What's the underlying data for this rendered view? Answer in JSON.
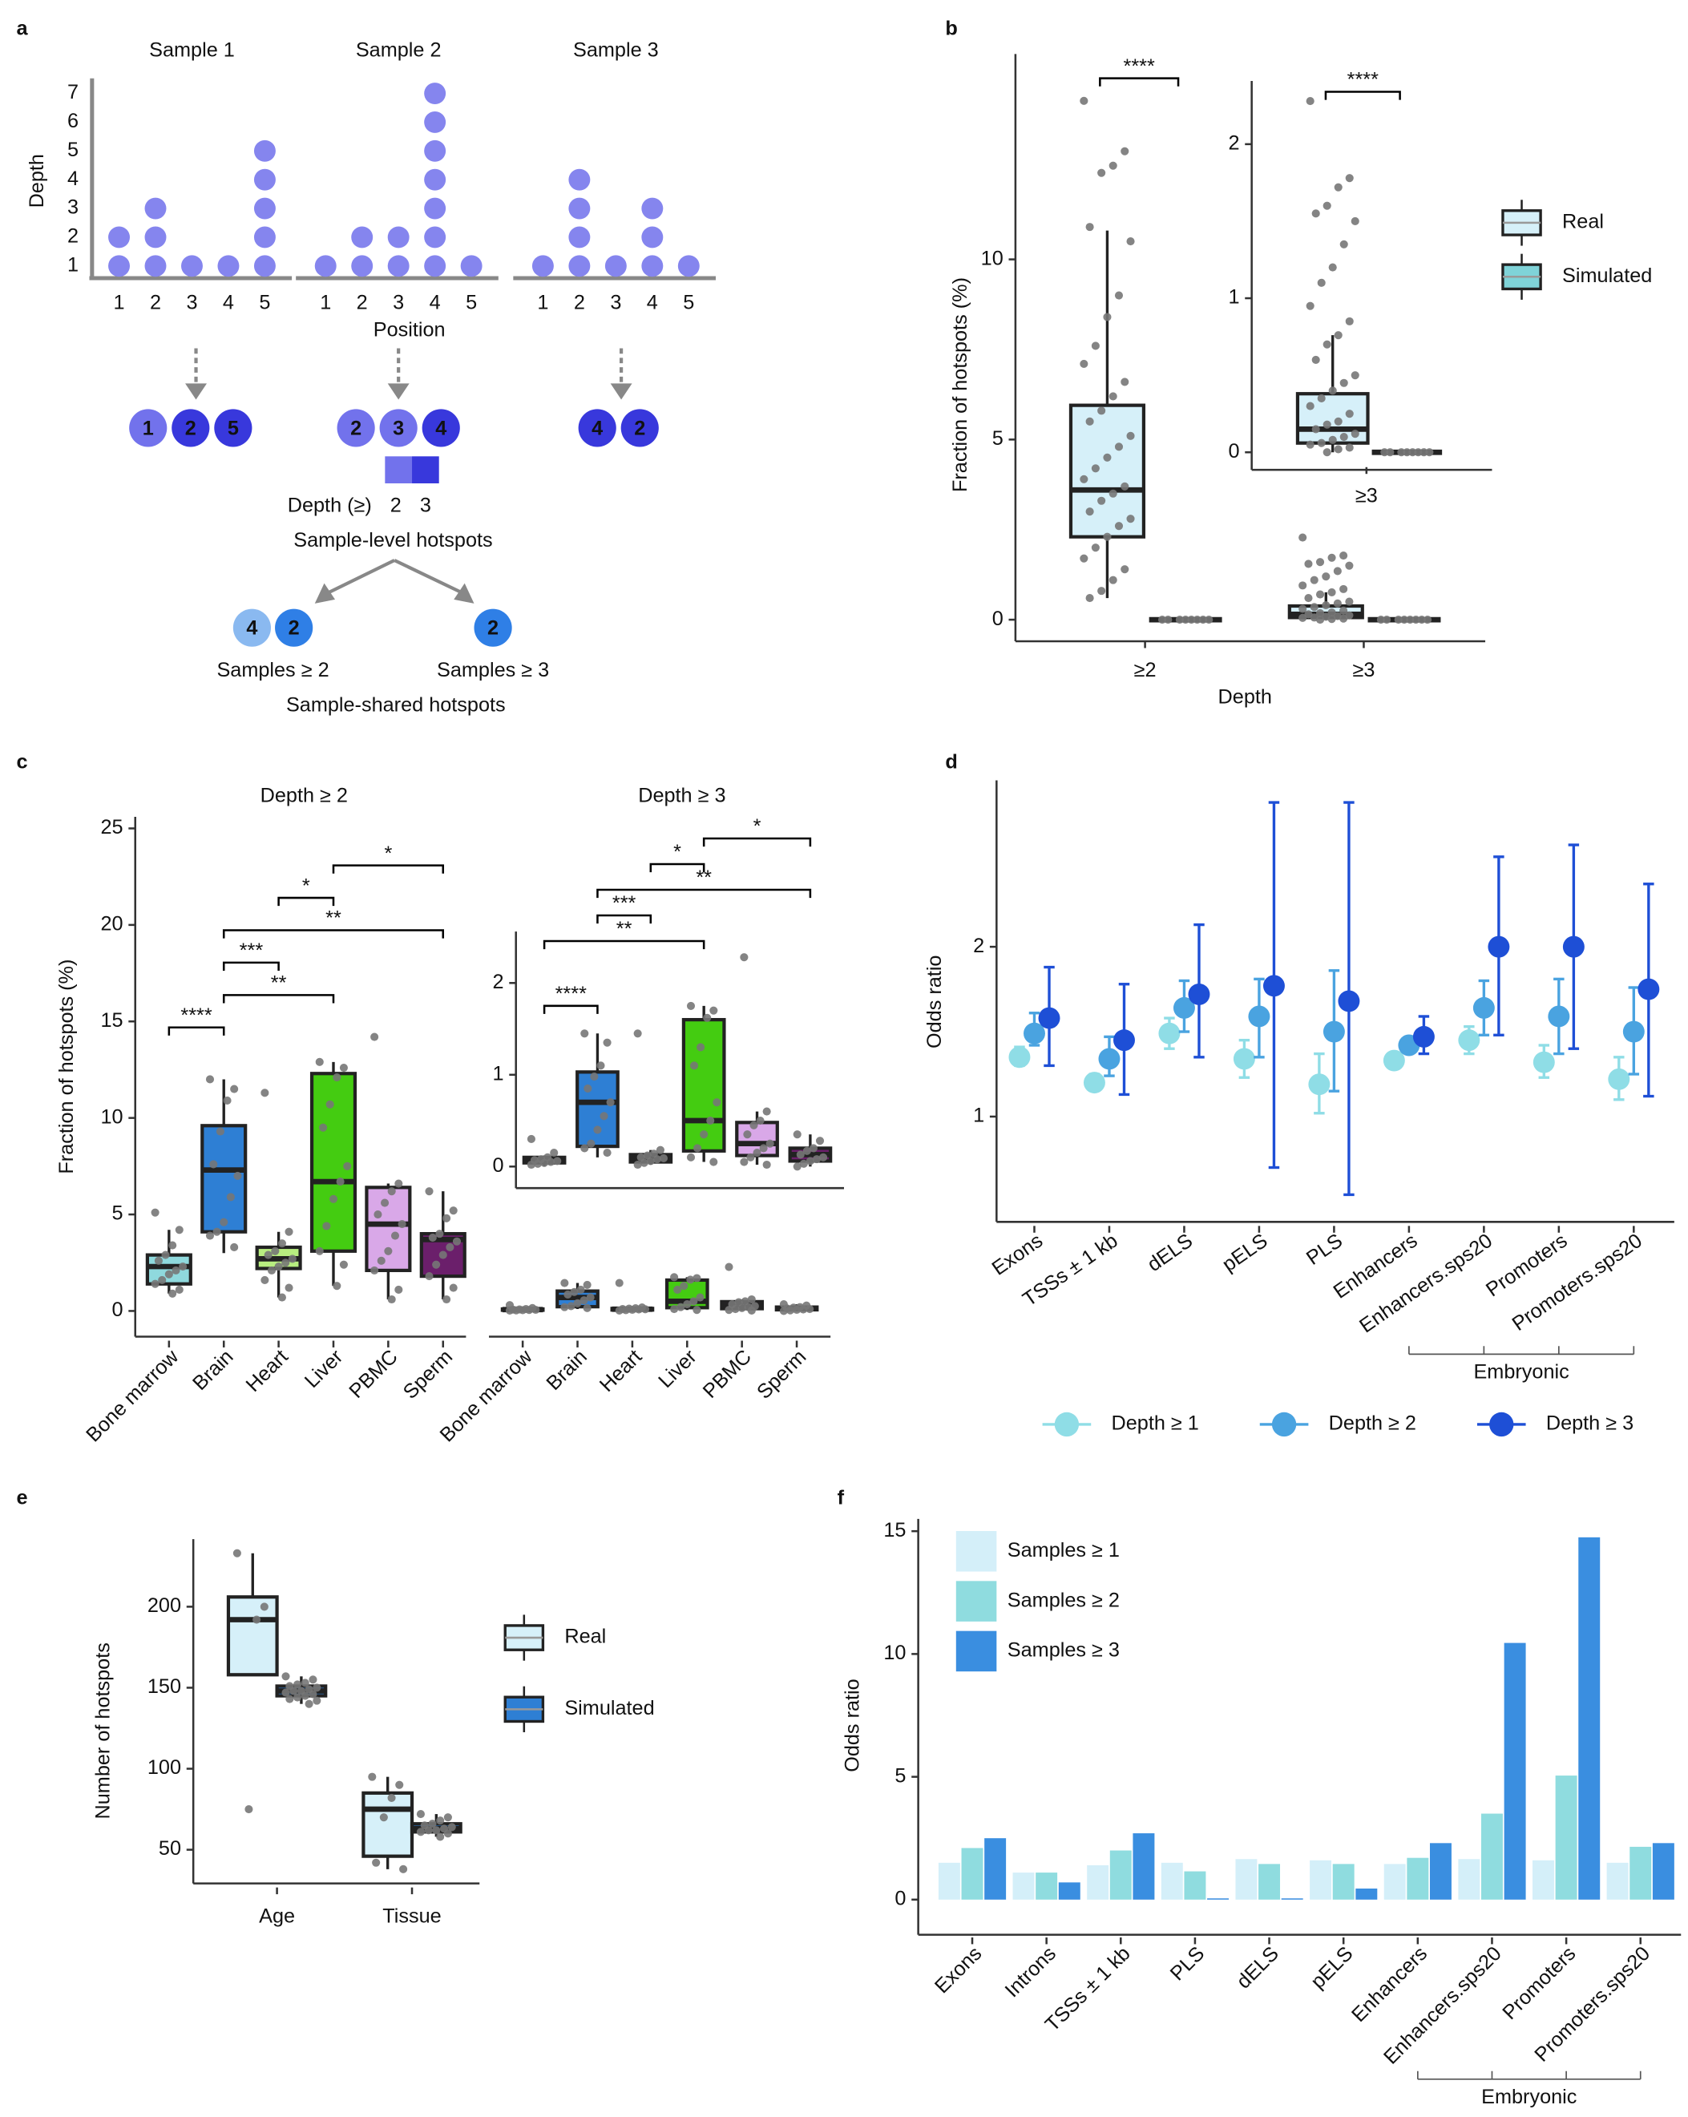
{
  "panels": [
    "a",
    "b",
    "c",
    "d",
    "e",
    "f"
  ],
  "diagram": {
    "depth_label": "Depth",
    "depth_ticks": [
      1,
      2,
      3,
      4,
      5,
      6,
      7
    ],
    "xlabel": "Position",
    "samples": [
      {
        "title": "Sample 1",
        "positions": [
          1,
          2,
          3,
          4,
          5
        ],
        "depths": [
          2,
          3,
          1,
          1,
          5
        ],
        "hotspots": [
          1,
          2,
          5
        ]
      },
      {
        "title": "Sample 2",
        "positions": [
          1,
          2,
          3,
          4,
          5
        ],
        "depths": [
          1,
          2,
          2,
          7,
          1
        ],
        "hotspots": [
          2,
          3,
          4
        ]
      },
      {
        "title": "Sample 3",
        "positions": [
          1,
          2,
          3,
          4,
          5
        ],
        "depths": [
          1,
          4,
          1,
          3,
          1
        ],
        "hotspots": [
          4,
          2
        ]
      }
    ],
    "dot_color": "#8585ee",
    "depth_key": {
      "label": "Depth (≥)",
      "levels": [
        2,
        3
      ],
      "colors": [
        "#7272ec",
        "#3838dc"
      ]
    },
    "level_title": "Sample-level hotspots",
    "shared": [
      {
        "label": "Samples ≥ 2",
        "hotspots": [
          4,
          2
        ],
        "colors": [
          "#8ab9f0",
          "#2f7fe6"
        ]
      },
      {
        "label": "Samples ≥ 3",
        "hotspots": [
          2
        ],
        "colors": [
          "#2f7fe6"
        ]
      }
    ],
    "shared_title": "Sample-shared hotspots"
  },
  "chart_data": [
    {
      "type": "box",
      "xlabel": "Depth",
      "ylabel": "Fraction of hotspots (%)",
      "categories": [
        "≥2",
        "≥3"
      ],
      "series": [
        {
          "name": "Real",
          "color": "#d6f0f9",
          "boxes": [
            {
              "min": 0.6,
              "q1": 2.3,
              "median": 3.6,
              "q3": 5.95,
              "max": 10.8,
              "points": [
                14.4,
                13.0,
                12.6,
                12.4,
                10.9,
                10.5,
                9.0,
                8.4,
                7.6,
                7.1,
                6.6,
                6.2,
                5.8,
                5.5,
                5.1,
                4.8,
                4.5,
                4.2,
                3.9,
                3.7,
                3.5,
                3.3,
                3.0,
                2.8,
                2.6,
                2.3,
                2.0,
                1.7,
                1.4,
                1.1,
                0.8,
                0.6
              ]
            },
            {
              "min": 0,
              "q1": 0.06,
              "median": 0.15,
              "q3": 0.38,
              "max": 0.76,
              "points": [
                2.28,
                1.78,
                1.72,
                1.6,
                1.55,
                1.5,
                1.35,
                1.2,
                1.1,
                0.95,
                0.85,
                0.76,
                0.7,
                0.6,
                0.5,
                0.45,
                0.4,
                0.35,
                0.3,
                0.25,
                0.2,
                0.18,
                0.15,
                0.12,
                0.1,
                0.08,
                0.06,
                0.05,
                0.03,
                0.02,
                0
              ]
            }
          ]
        },
        {
          "name": "Simulated",
          "color": "#7fd3d8",
          "boxes": [
            {
              "min": 0,
              "q1": 0,
              "median": 0,
              "q3": 0,
              "max": 0,
              "points": [
                0,
                0,
                0,
                0,
                0,
                0,
                0,
                0
              ]
            },
            {
              "min": 0,
              "q1": 0,
              "median": 0,
              "q3": 0,
              "max": 0,
              "points": [
                0,
                0,
                0,
                0,
                0,
                0,
                0,
                0
              ]
            }
          ]
        }
      ],
      "ylim": [
        -0.6,
        15.7
      ],
      "yticks": [
        0,
        5,
        10
      ],
      "brackets": [
        {
          "label": "****",
          "category": "≥2"
        }
      ],
      "inset": {
        "categories": [
          "≥3"
        ],
        "ylim": [
          -0.114,
          2.41
        ],
        "yticks": [
          0,
          1,
          2
        ],
        "brackets": [
          {
            "label": "****",
            "category": "≥3"
          }
        ]
      }
    },
    {
      "type": "box",
      "title": "Depth ≥ 2",
      "ylabel": "Fraction of hotspots (%)",
      "categories": [
        "Bone marrow",
        "Brain",
        "Heart",
        "Liver",
        "PBMC",
        "Sperm"
      ],
      "colors": [
        "#8fd9dd",
        "#2e7fd4",
        "#b8ee80",
        "#44cc11",
        "#d9a8e8",
        "#6b1f6b"
      ],
      "boxes": [
        {
          "min": 0.9,
          "q1": 1.4,
          "median": 2.3,
          "q3": 2.9,
          "max": 4.2,
          "points": [
            5.1,
            4.2,
            3.4,
            2.9,
            2.6,
            2.3,
            2.1,
            1.9,
            1.6,
            1.4,
            1.1,
            0.9
          ]
        },
        {
          "min": 3.0,
          "q1": 4.1,
          "median": 7.3,
          "q3": 9.6,
          "max": 12.0,
          "points": [
            12.0,
            11.5,
            10.9,
            9.3,
            7.6,
            7.0,
            5.9,
            4.6,
            4.1,
            3.9,
            3.3
          ]
        },
        {
          "min": 0.7,
          "q1": 2.2,
          "median": 2.7,
          "q3": 3.3,
          "max": 4.1,
          "points": [
            11.3,
            4.1,
            3.5,
            3.1,
            2.9,
            2.7,
            2.5,
            2.3,
            2.1,
            1.6,
            1.2,
            0.7
          ]
        },
        {
          "min": 1.3,
          "q1": 3.1,
          "median": 6.7,
          "q3": 12.3,
          "max": 12.9,
          "points": [
            12.9,
            12.6,
            12.1,
            10.7,
            9.5,
            7.5,
            6.7,
            5.8,
            4.4,
            3.1,
            2.4,
            1.3
          ]
        },
        {
          "min": 0.6,
          "q1": 2.1,
          "median": 4.5,
          "q3": 6.4,
          "max": 6.6,
          "points": [
            14.2,
            6.6,
            6.2,
            5.6,
            5.0,
            4.5,
            3.9,
            3.1,
            2.6,
            2.1,
            1.1,
            0.6
          ]
        },
        {
          "min": 0.6,
          "q1": 1.8,
          "median": 3.7,
          "q3": 4.0,
          "max": 6.2,
          "points": [
            6.2,
            5.2,
            4.8,
            4.0,
            3.8,
            3.6,
            3.3,
            2.9,
            2.4,
            1.8,
            1.2,
            0.6
          ]
        }
      ],
      "ylim": [
        -1.33,
        25.6
      ],
      "yticks": [
        0,
        5,
        10,
        15,
        20,
        25
      ],
      "brackets": [
        {
          "label": "****",
          "from": "Bone marrow",
          "to": "Brain"
        },
        {
          "label": "**",
          "from": "Brain",
          "to": "Liver"
        },
        {
          "label": "***",
          "from": "Brain",
          "to": "Heart"
        },
        {
          "label": "**",
          "from": "Brain",
          "to": "Sperm"
        },
        {
          "label": "*",
          "from": "Heart",
          "to": "Liver"
        },
        {
          "label": "*",
          "from": "Liver",
          "to": "Sperm"
        }
      ]
    },
    {
      "type": "box",
      "title": "Depth ≥ 3",
      "categories": [
        "Bone marrow",
        "Brain",
        "Heart",
        "Liver",
        "PBMC",
        "Sperm"
      ],
      "colors": [
        "#8fd9dd",
        "#2e7fd4",
        "#b8ee80",
        "#44cc11",
        "#d9a8e8",
        "#6b1f6b"
      ],
      "boxes": [
        {
          "min": 0,
          "q1": 0.04,
          "median": 0.07,
          "q3": 0.1,
          "max": 0.12,
          "points": [
            0.3,
            0.15,
            0.1,
            0.08,
            0.07,
            0.06,
            0.05,
            0.04,
            0.03,
            0.02
          ]
        },
        {
          "min": 0.1,
          "q1": 0.22,
          "median": 0.7,
          "q3": 1.03,
          "max": 1.45,
          "points": [
            1.45,
            1.35,
            1.1,
            0.98,
            0.85,
            0.7,
            0.55,
            0.4,
            0.25,
            0.2,
            0.15
          ]
        },
        {
          "min": 0.02,
          "q1": 0.05,
          "median": 0.09,
          "q3": 0.13,
          "max": 0.18,
          "points": [
            1.45,
            0.18,
            0.14,
            0.12,
            0.1,
            0.09,
            0.08,
            0.06,
            0.04,
            0.02
          ]
        },
        {
          "min": 0.05,
          "q1": 0.17,
          "median": 0.5,
          "q3": 1.6,
          "max": 1.75,
          "points": [
            1.75,
            1.7,
            1.62,
            1.3,
            1.1,
            0.7,
            0.5,
            0.35,
            0.2,
            0.1,
            0.05
          ]
        },
        {
          "min": 0.02,
          "q1": 0.12,
          "median": 0.25,
          "q3": 0.48,
          "max": 0.6,
          "points": [
            2.28,
            0.6,
            0.5,
            0.45,
            0.35,
            0.25,
            0.2,
            0.15,
            0.1,
            0.05,
            0.02
          ]
        },
        {
          "min": 0,
          "q1": 0.06,
          "median": 0.13,
          "q3": 0.2,
          "max": 0.35,
          "points": [
            0.35,
            0.28,
            0.2,
            0.17,
            0.13,
            0.1,
            0.08,
            0.06,
            0.03,
            0.0
          ]
        }
      ],
      "ylim": [
        -1.33,
        25.6
      ],
      "inset": {
        "ylim": [
          -0.235,
          2.56
        ],
        "yticks": [
          0,
          1,
          2
        ],
        "brackets": [
          {
            "label": "****",
            "from": "Bone marrow",
            "to": "Brain"
          },
          {
            "label": "**",
            "from": "Bone marrow",
            "to": "Liver"
          },
          {
            "label": "***",
            "from": "Brain",
            "to": "Heart"
          },
          {
            "label": "**",
            "from": "Brain",
            "to": "Sperm"
          },
          {
            "label": "*",
            "from": "Heart",
            "to": "Liver"
          },
          {
            "label": "*",
            "from": "Liver",
            "to": "Sperm"
          }
        ]
      }
    },
    {
      "type": "errorbar",
      "ylabel": "Odds ratio",
      "categories": [
        "Exons",
        "TSSs ± 1 kb",
        "dELS",
        "pELS",
        "PLS",
        "Enhancers",
        "Enhancers.sps20",
        "Promoters",
        "Promoters.sps20"
      ],
      "series": [
        {
          "name": "Depth ≥ 1",
          "color": "#8fdde6",
          "values": [
            1.35,
            1.2,
            1.49,
            1.34,
            1.19,
            1.33,
            1.45,
            1.32,
            1.22
          ],
          "lower": [
            1.3,
            1.16,
            1.4,
            1.23,
            1.02,
            1.31,
            1.37,
            1.23,
            1.1
          ],
          "upper": [
            1.41,
            1.25,
            1.58,
            1.45,
            1.37,
            1.36,
            1.53,
            1.42,
            1.35
          ]
        },
        {
          "name": "Depth ≥ 2",
          "color": "#4aa3e0",
          "values": [
            1.49,
            1.34,
            1.64,
            1.59,
            1.5,
            1.42,
            1.64,
            1.59,
            1.5
          ],
          "lower": [
            1.42,
            1.24,
            1.5,
            1.35,
            1.15,
            1.39,
            1.48,
            1.37,
            1.25
          ],
          "upper": [
            1.61,
            1.47,
            1.8,
            1.81,
            1.86,
            1.46,
            1.8,
            1.81,
            1.76
          ]
        },
        {
          "name": "Depth ≥ 3",
          "color": "#1e4fd6",
          "values": [
            1.58,
            1.45,
            1.72,
            1.77,
            1.68,
            1.47,
            2.0,
            2.0,
            1.75
          ],
          "lower": [
            1.3,
            1.13,
            1.35,
            0.7,
            0.54,
            1.37,
            1.48,
            1.4,
            1.12
          ],
          "upper": [
            1.88,
            1.78,
            2.13,
            2.85,
            2.85,
            1.59,
            2.53,
            2.6,
            2.37
          ]
        }
      ],
      "ylim": [
        0.38,
        2.98
      ],
      "yticks": [
        1,
        2
      ],
      "groups": [
        {
          "label": "Embryonic",
          "from": "Enhancers",
          "to": "Promoters.sps20"
        }
      ]
    },
    {
      "type": "box",
      "ylabel": "Number of hotspots",
      "categories": [
        "Age",
        "Tissue"
      ],
      "series": [
        {
          "name": "Real",
          "color": "#d6f0f9",
          "boxes": [
            {
              "min": 158,
              "q1": 158,
              "median": 192,
              "q3": 206,
              "max": 233,
              "points": [
                233,
                200,
                192,
                75
              ]
            },
            {
              "min": 38,
              "q1": 46,
              "median": 75,
              "q3": 85,
              "max": 95,
              "points": [
                95,
                90,
                82,
                70,
                42,
                38
              ]
            }
          ]
        },
        {
          "name": "Simulated",
          "color": "#2e7fd4",
          "boxes": [
            {
              "min": 140,
              "q1": 145,
              "median": 148,
              "q3": 151,
              "max": 157,
              "points": [
                157,
                155,
                153,
                152,
                151,
                150,
                149,
                148,
                148,
                147,
                146,
                145,
                144,
                143,
                142,
                140
              ]
            },
            {
              "min": 58,
              "q1": 61,
              "median": 63,
              "q3": 66,
              "max": 72,
              "points": [
                72,
                70,
                68,
                66,
                65,
                64,
                63,
                62,
                62,
                61,
                60,
                58
              ]
            }
          ]
        }
      ],
      "ylim": [
        29.2,
        241.7
      ],
      "yticks": [
        50,
        100,
        150,
        200
      ]
    },
    {
      "type": "bar",
      "ylabel": "Odds ratio",
      "categories": [
        "Exons",
        "Introns",
        "TSSs ± 1 kb",
        "PLS",
        "dELS",
        "pELS",
        "Enhancers",
        "Enhancers.sps20",
        "Promoters",
        "Promoters.sps20"
      ],
      "series": [
        {
          "name": "Samples ≥ 1",
          "color": "#d4eff9",
          "values": [
            1.5,
            1.1,
            1.4,
            1.5,
            1.65,
            1.6,
            1.45,
            1.65,
            1.6,
            1.5
          ]
        },
        {
          "name": "Samples ≥ 2",
          "color": "#8fdcdf",
          "values": [
            2.1,
            1.1,
            2.0,
            1.15,
            1.45,
            1.45,
            1.7,
            3.5,
            5.05,
            2.15
          ]
        },
        {
          "name": "Samples ≥ 3",
          "color": "#3a8ee0",
          "values": [
            2.5,
            0.7,
            2.7,
            0.05,
            0.05,
            0.45,
            2.3,
            10.45,
            14.75,
            2.3
          ]
        }
      ],
      "ylim": [
        -1.43,
        15.5
      ],
      "yticks": [
        0,
        5,
        10,
        15
      ],
      "groups": [
        {
          "label": "Embryonic",
          "from": "Enhancers",
          "to": "Promoters.sps20"
        }
      ]
    }
  ]
}
